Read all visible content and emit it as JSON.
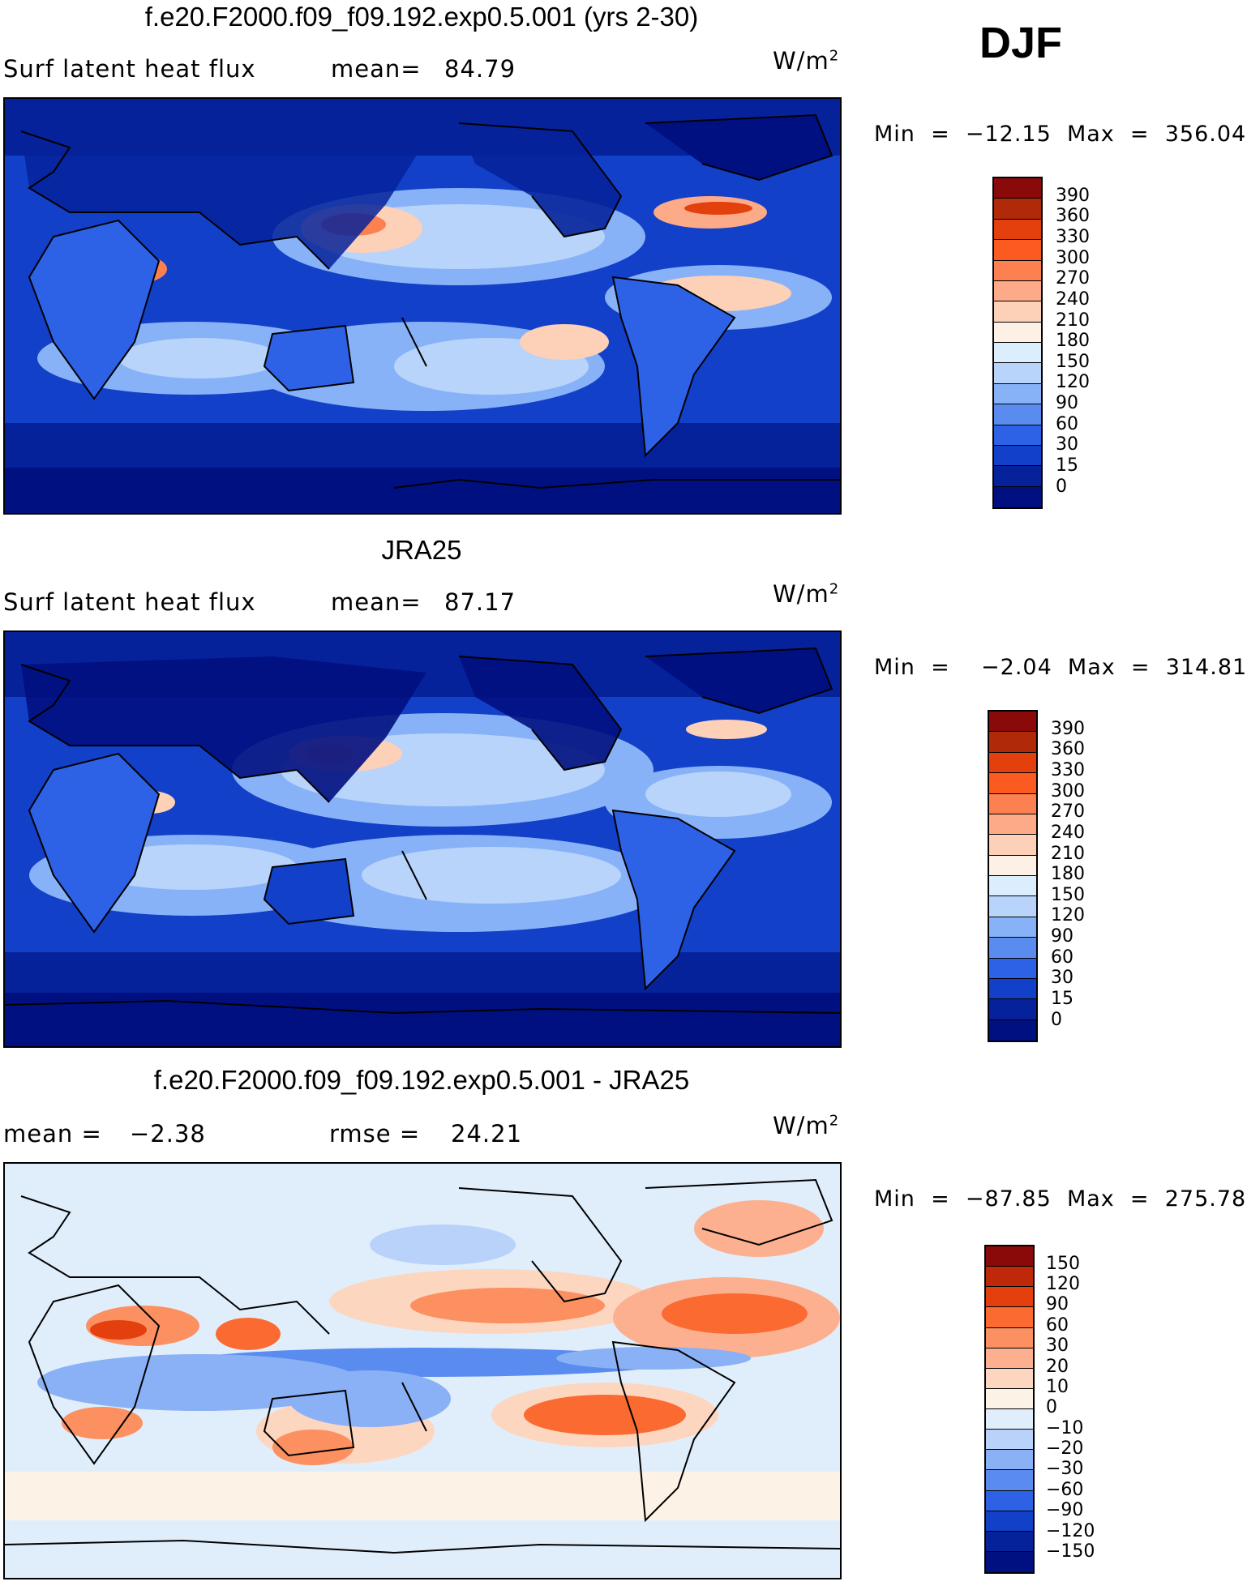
{
  "season": "DJF",
  "panels": [
    {
      "title": "f.e20.F2000.f09_f09.192.exp0.5.001 (yrs 2-30)",
      "left_label": "Surf  latent  heat  flux",
      "stat_label": "mean=",
      "stat_value": "84.79",
      "units": "W/m",
      "units_sup": "2",
      "minmax": "Min  =  −12.15  Max  =  356.04",
      "colorbar": {
        "labels": [
          "390",
          "360",
          "330",
          "300",
          "270",
          "240",
          "210",
          "180",
          "150",
          "120",
          "90",
          "60",
          "30",
          "15",
          "0"
        ],
        "colors": [
          "#8a0a0a",
          "#b02a0a",
          "#e3400e",
          "#fb5a20",
          "#fc8050",
          "#fcaa88",
          "#fdd0b8",
          "#fdf0e4",
          "#dceefd",
          "#b8d4fb",
          "#88b2f7",
          "#5a8cf0",
          "#2e62e6",
          "#1240c8",
          "#06229a",
          "#011080"
        ]
      }
    },
    {
      "title": "JRA25",
      "left_label": "Surf  latent  heat  flux",
      "stat_label": "mean=",
      "stat_value": "87.17",
      "units": "W/m",
      "units_sup": "2",
      "minmax": "Min  =    −2.04  Max  =  314.81",
      "colorbar": {
        "labels": [
          "390",
          "360",
          "330",
          "300",
          "270",
          "240",
          "210",
          "180",
          "150",
          "120",
          "90",
          "60",
          "30",
          "15",
          "0"
        ],
        "colors": [
          "#8a0a0a",
          "#b02a0a",
          "#e3400e",
          "#fb5a20",
          "#fc8050",
          "#fcaa88",
          "#fdd0b8",
          "#fdf0e4",
          "#dceefd",
          "#b8d4fb",
          "#88b2f7",
          "#5a8cf0",
          "#2e62e6",
          "#1240c8",
          "#06229a",
          "#011080"
        ]
      }
    },
    {
      "title": "f.e20.F2000.f09_f09.192.exp0.5.001 - JRA25",
      "left_label": "mean  =",
      "left_value": "−2.38",
      "stat_label": "rmse  =",
      "stat_value": "24.21",
      "units": "W/m",
      "units_sup": "2",
      "minmax": "Min  =  −87.85  Max  =  275.78",
      "colorbar": {
        "labels": [
          "150",
          "120",
          "90",
          "60",
          "30",
          "20",
          "10",
          "0",
          "−10",
          "−20",
          "−30",
          "−60",
          "−90",
          "−120",
          "−150"
        ],
        "colors": [
          "#8a0a0a",
          "#c0280a",
          "#e3400e",
          "#fb6a30",
          "#fc9060",
          "#fcb090",
          "#fdd6c0",
          "#fdf2e6",
          "#e0eefc",
          "#b8d2fa",
          "#8ab0f5",
          "#5a8cf0",
          "#2e62e6",
          "#1240c8",
          "#06229a",
          "#011080"
        ]
      }
    }
  ]
}
